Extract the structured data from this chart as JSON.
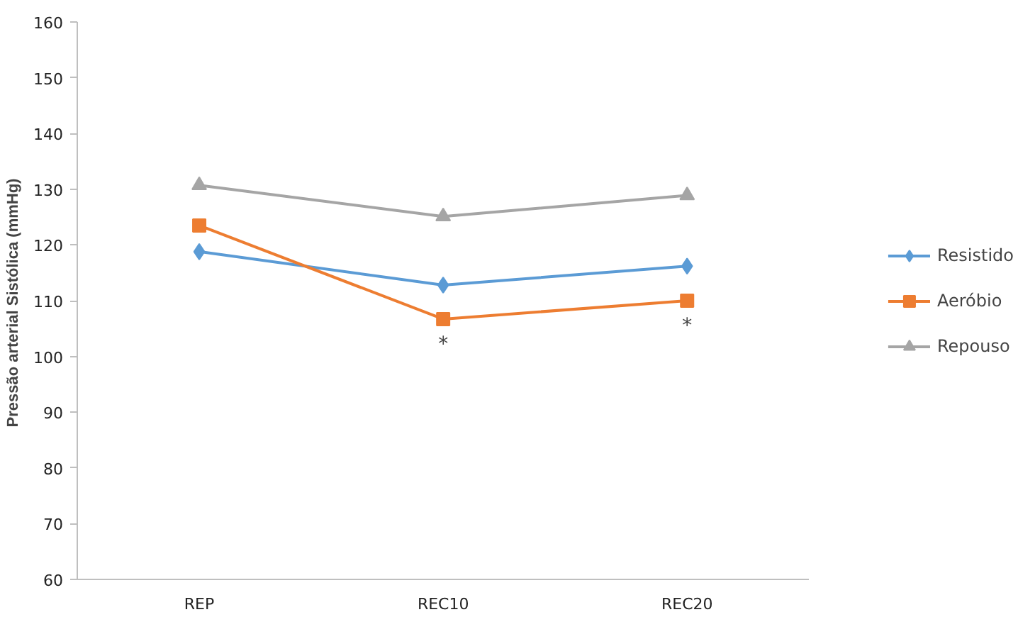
{
  "chart_data": {
    "type": "line",
    "ylabel": "Pressão arterial Sistólica  (mmHg)",
    "categories": [
      "REP",
      "REC10",
      "REC20"
    ],
    "series": [
      {
        "name": "Resistido",
        "color": "#5b9bd5",
        "values": [
          118.8,
          112.8,
          116.2
        ],
        "marker": "diamond"
      },
      {
        "name": "Aeróbio",
        "color": "#ed7d31",
        "values": [
          123.5,
          106.7,
          110.0
        ],
        "marker": "square"
      },
      {
        "name": "Repouso",
        "color": "#a5a5a5",
        "values": [
          130.7,
          125.1,
          128.9
        ],
        "marker": "triangle"
      }
    ],
    "ylim": [
      60,
      160
    ],
    "yticks": [
      60,
      70,
      80,
      90,
      100,
      110,
      120,
      130,
      140,
      150,
      160
    ],
    "grid": false,
    "legend": "right",
    "annotations": [
      {
        "text": "*",
        "x": "REC10",
        "y": 106.7
      },
      {
        "text": "*",
        "x": "REC20",
        "y": 110.0
      }
    ]
  }
}
